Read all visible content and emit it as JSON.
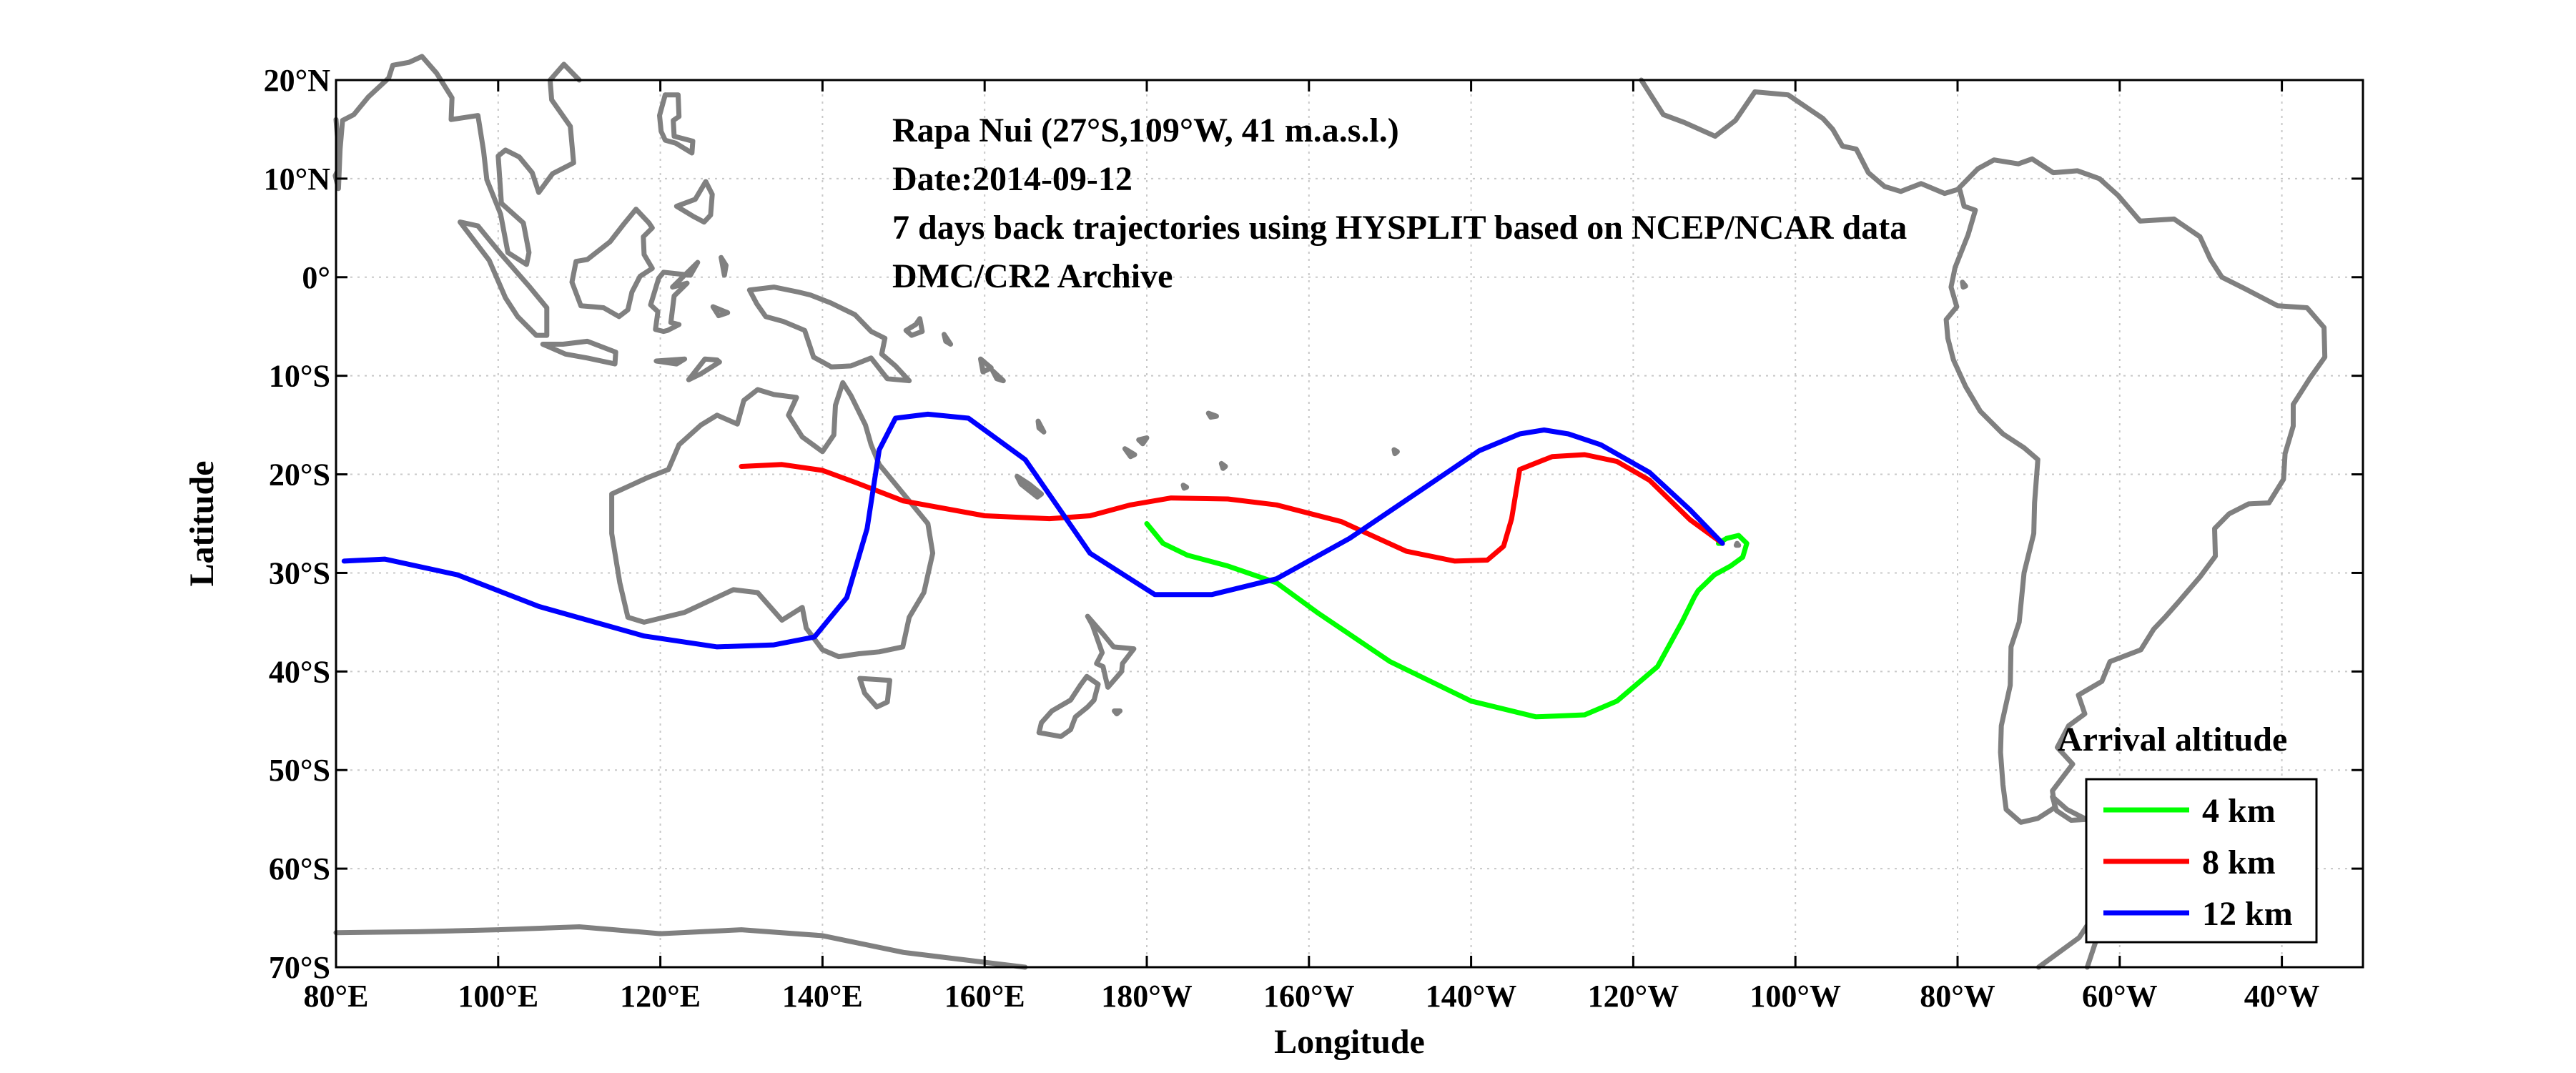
{
  "chart_data": {
    "type": "line",
    "title_lines": [
      "Rapa Nui (27°S,109°W, 41 m.a.s.l.)",
      "Date:2014-09-12",
      "7 days back trajectories using HYSPLIT based on NCEP/NCAR data",
      "DMC/CR2 Archive"
    ],
    "xlabel": "Longitude",
    "ylabel": "Latitude",
    "xlim": [
      80,
      330
    ],
    "ylim": [
      -70,
      20
    ],
    "x_ticks": [
      80,
      100,
      120,
      140,
      160,
      180,
      200,
      220,
      240,
      260,
      280,
      300,
      320
    ],
    "x_tick_labels": [
      "80°E",
      "100°E",
      "120°E",
      "140°E",
      "160°E",
      "180°W",
      "160°W",
      "140°W",
      "120°W",
      "100°W",
      "80°W",
      "60°W",
      "40°W"
    ],
    "y_ticks": [
      20,
      10,
      0,
      -10,
      -20,
      -30,
      -40,
      -50,
      -60,
      -70
    ],
    "y_tick_labels": [
      "20°N",
      "10°N",
      "0°",
      "10°S",
      "20°S",
      "30°S",
      "40°S",
      "50°S",
      "60°S",
      "70°S"
    ],
    "grid": true,
    "legend": {
      "title": "Arrival altitude",
      "placement": "bottom-right"
    },
    "series": [
      {
        "name": "4 km",
        "color": "#00ff00",
        "x": [
          180,
          182,
          185,
          190,
          196,
          201,
          210,
          220,
          228,
          234,
          238,
          243,
          246,
          247.5,
          248,
          249,
          250,
          252,
          253.5,
          254,
          253,
          251.5,
          250.5,
          251
        ],
        "y": [
          -25,
          -27,
          -28.2,
          -29.3,
          -31,
          -34,
          -39,
          -43,
          -44.6,
          -44.4,
          -43,
          -39.5,
          -35,
          -32.5,
          -31.8,
          -31,
          -30.2,
          -29.3,
          -28.4,
          -27,
          -26.2,
          -26.5,
          -27,
          -27
        ]
      },
      {
        "name": "8 km",
        "color": "#ff0000",
        "x": [
          130,
          135,
          140,
          144,
          150,
          160,
          168,
          173,
          178,
          183,
          190,
          196,
          204,
          212,
          218,
          222,
          224,
          225,
          226,
          230,
          234,
          238,
          242,
          247,
          251
        ],
        "y": [
          -19.2,
          -19,
          -19.6,
          -20.8,
          -22.7,
          -24.2,
          -24.5,
          -24.2,
          -23.1,
          -22.4,
          -22.5,
          -23.1,
          -24.8,
          -27.8,
          -28.8,
          -28.7,
          -27.3,
          -24.5,
          -19.5,
          -18.2,
          -18,
          -18.7,
          -20.6,
          -24.6,
          -27
        ]
      },
      {
        "name": "12 km",
        "color": "#0000ff",
        "x": [
          81,
          86,
          95,
          105,
          118,
          127,
          134,
          139,
          143,
          145.5,
          147,
          149,
          153,
          158,
          165,
          173,
          181,
          188,
          196,
          205,
          214,
          221,
          226,
          229,
          232,
          236,
          242,
          247,
          251
        ],
        "y": [
          -28.8,
          -28.6,
          -30.2,
          -33.4,
          -36.4,
          -37.5,
          -37.3,
          -36.5,
          -32.5,
          -25.5,
          -17.5,
          -14.3,
          -13.9,
          -14.3,
          -18.5,
          -28,
          -32.2,
          -32.2,
          -30.6,
          -26.5,
          -21.5,
          -17.6,
          -15.9,
          -15.5,
          -15.9,
          -17,
          -19.8,
          -23.6,
          -27
        ]
      }
    ]
  }
}
